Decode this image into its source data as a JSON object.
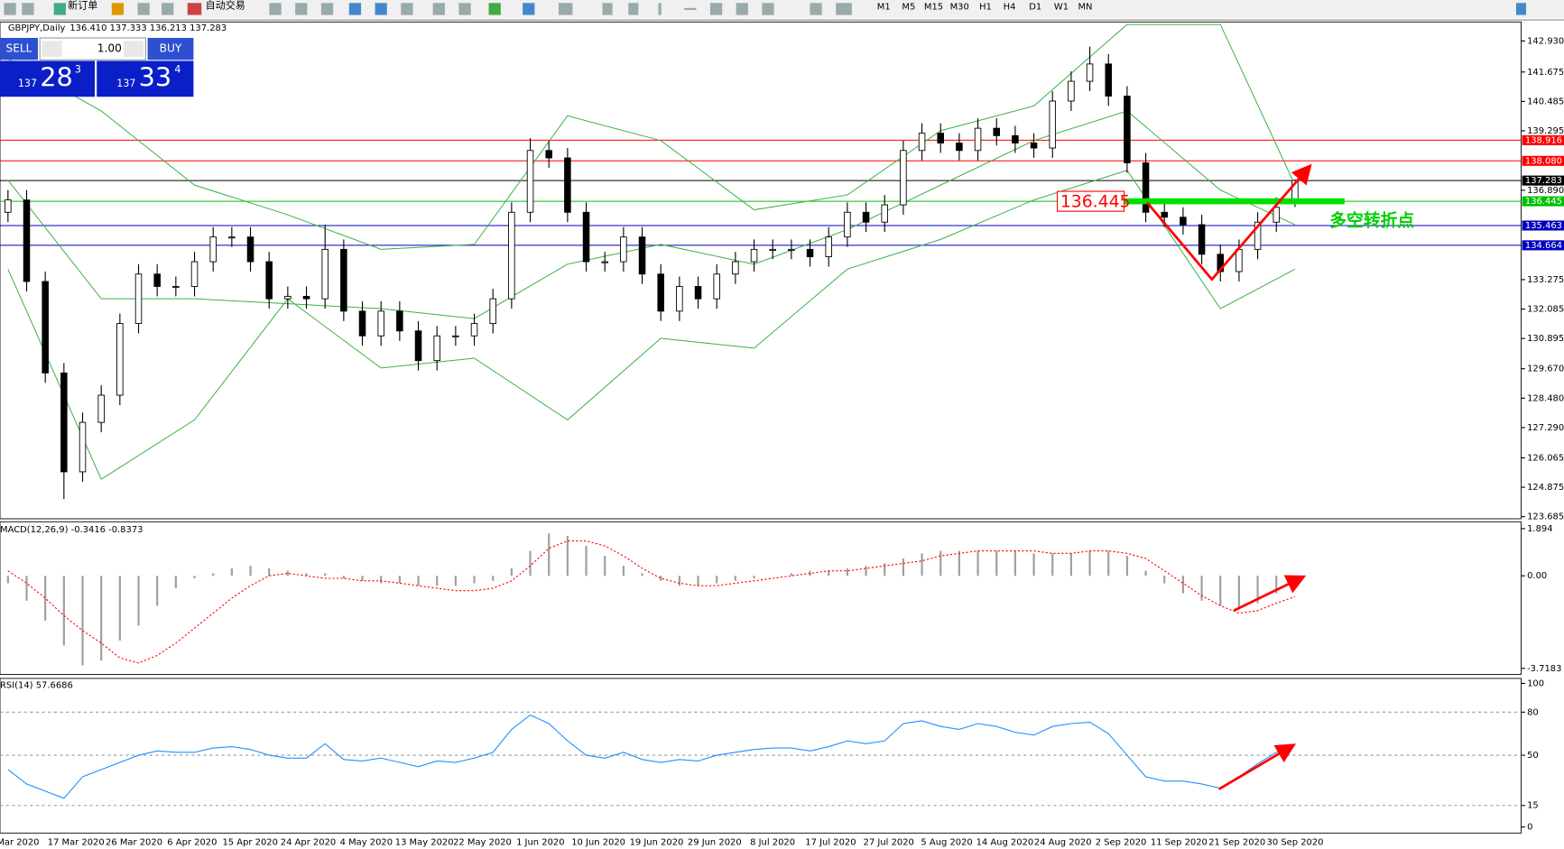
{
  "toolbar": {
    "new_order": "新订单",
    "auto_trading": "自动交易",
    "timeframes": [
      "M1",
      "M5",
      "M15",
      "M30",
      "H1",
      "H4",
      "D1",
      "W1",
      "MN"
    ]
  },
  "trade_panel": {
    "sell": "SELL",
    "buy": "BUY",
    "volume": "1.00",
    "sell_price": {
      "big": "137",
      "main": "28",
      "small": "3"
    },
    "buy_price": {
      "big": "137",
      "main": "33",
      "small": "4"
    }
  },
  "chart_data": [
    {
      "type": "candlestick",
      "symbol": "GBPJPY,Daily",
      "ohlc_text": "136.410 137.333 136.213 137.283",
      "ylim": [
        123.6,
        143.7
      ],
      "yticks": [
        {
          "value": 142.93,
          "label": "142.930"
        },
        141.675,
        140.485,
        139.295,
        {
          "value": 136.89,
          "label": "136.890"
        },
        133.275,
        132.085,
        130.895,
        {
          "value": 129.67,
          "label": "129.670"
        },
        {
          "value": 128.48,
          "label": "128.480"
        },
        {
          "value": 127.29,
          "label": "127.290"
        },
        126.065,
        124.875,
        123.685
      ],
      "candles": [
        [
          136,
          136.9,
          135.6,
          136.5
        ],
        [
          136.5,
          136.9,
          132.8,
          133.2
        ],
        [
          133.2,
          133.6,
          129.1,
          129.5
        ],
        [
          129.5,
          129.9,
          124.4,
          125.5
        ],
        [
          125.5,
          127.9,
          125.1,
          127.5
        ],
        [
          127.5,
          129,
          127.1,
          128.6
        ],
        [
          128.6,
          131.9,
          128.2,
          131.5
        ],
        [
          131.5,
          133.9,
          131.1,
          133.5
        ],
        [
          133.5,
          133.9,
          132.6,
          133
        ],
        [
          133,
          133.4,
          132.6,
          133
        ],
        [
          133,
          134.4,
          132.6,
          134
        ],
        [
          134,
          135.4,
          133.6,
          135
        ],
        [
          135,
          135.4,
          134.6,
          135
        ],
        [
          135,
          135.4,
          133.6,
          134
        ],
        [
          134,
          134.4,
          132.1,
          132.5
        ],
        [
          132.5,
          133,
          132.1,
          132.6
        ],
        [
          132.6,
          133,
          132.1,
          132.5
        ],
        [
          132.5,
          135.5,
          132.1,
          134.5
        ],
        [
          134.5,
          134.9,
          131.6,
          132
        ],
        [
          132,
          132.4,
          130.6,
          131
        ],
        [
          131,
          132.4,
          130.6,
          132
        ],
        [
          132,
          132.4,
          130.8,
          131.2
        ],
        [
          131.2,
          131.6,
          129.6,
          130
        ],
        [
          130,
          131.4,
          129.6,
          131
        ],
        [
          131,
          131.4,
          130.6,
          131
        ],
        [
          131,
          131.9,
          130.6,
          131.5
        ],
        [
          131.5,
          132.9,
          131.1,
          132.5
        ],
        [
          132.5,
          136.4,
          132.1,
          136
        ],
        [
          136,
          139,
          135.6,
          138.5
        ],
        [
          138.5,
          138.9,
          137.8,
          138.2
        ],
        [
          138.2,
          138.6,
          135.6,
          136
        ],
        [
          136,
          136.4,
          133.6,
          134
        ],
        [
          134,
          134.4,
          133.6,
          134
        ],
        [
          134,
          135.4,
          133.6,
          135
        ],
        [
          135,
          135.4,
          133.1,
          133.5
        ],
        [
          133.5,
          133.9,
          131.6,
          132
        ],
        [
          132,
          133.4,
          131.6,
          133
        ],
        [
          133,
          133.4,
          132.1,
          132.5
        ],
        [
          132.5,
          133.9,
          132.1,
          133.5
        ],
        [
          133.5,
          134.4,
          133.1,
          134
        ],
        [
          134,
          134.9,
          133.6,
          134.5
        ],
        [
          134.5,
          134.9,
          134.1,
          134.5
        ],
        [
          134.5,
          134.9,
          134.1,
          134.5
        ],
        [
          134.5,
          134.9,
          133.8,
          134.2
        ],
        [
          134.2,
          135.4,
          133.8,
          135
        ],
        [
          135,
          136.4,
          134.6,
          136
        ],
        [
          136,
          136.4,
          135.2,
          135.6
        ],
        [
          135.6,
          136.7,
          135.2,
          136.3
        ],
        [
          136.3,
          138.9,
          135.9,
          138.5
        ],
        [
          138.5,
          139.6,
          138.1,
          139.2
        ],
        [
          139.2,
          139.6,
          138.4,
          138.8
        ],
        [
          138.8,
          139.2,
          138.1,
          138.5
        ],
        [
          138.5,
          139.8,
          138.1,
          139.4
        ],
        [
          139.4,
          139.8,
          138.7,
          139.1
        ],
        [
          139.1,
          139.5,
          138.4,
          138.8
        ],
        [
          138.8,
          139.2,
          138.2,
          138.6
        ],
        [
          138.6,
          140.9,
          138.2,
          140.5
        ],
        [
          140.5,
          141.7,
          140.1,
          141.3
        ],
        [
          141.3,
          142.7,
          140.9,
          142
        ],
        [
          142,
          142.4,
          140.3,
          140.7
        ],
        [
          140.7,
          141.1,
          137.6,
          138
        ],
        [
          138,
          138.4,
          135.6,
          136
        ],
        [
          136,
          136.4,
          135.4,
          135.8
        ],
        [
          135.8,
          136.2,
          135.1,
          135.5
        ],
        [
          135.5,
          135.9,
          133.9,
          134.3
        ],
        [
          134.3,
          134.7,
          133.2,
          133.6
        ],
        [
          133.6,
          134.9,
          133.2,
          134.5
        ],
        [
          134.5,
          136,
          134.1,
          135.6
        ],
        [
          135.6,
          136.6,
          135.2,
          136.2
        ],
        [
          136.41,
          137.333,
          136.213,
          137.283
        ]
      ],
      "bands": {
        "x": [
          0,
          5,
          10,
          15,
          20,
          25,
          30,
          35,
          40,
          45,
          50,
          55,
          60,
          65,
          69
        ],
        "upper": [
          142.2,
          140.1,
          137.1,
          135.9,
          134.5,
          134.7,
          139.9,
          138.9,
          136.1,
          136.7,
          139.3,
          140.3,
          143.6,
          143.6,
          137.1
        ],
        "middle": [
          137.3,
          132.5,
          132.5,
          132.3,
          132.1,
          131.7,
          133.9,
          134.7,
          133.9,
          135.3,
          137.1,
          138.9,
          140.1,
          136.9,
          135.5
        ],
        "lower": [
          133.7,
          125.2,
          127.6,
          132.5,
          129.7,
          130.1,
          127.6,
          130.9,
          130.5,
          133.7,
          134.9,
          136.5,
          137.7,
          132.1,
          133.7
        ],
        "color": "#3cb043"
      },
      "levels": [
        {
          "value": 138.916,
          "label": "138.916",
          "color": "#ff0000"
        },
        {
          "value": 138.08,
          "label": "138.080",
          "color": "#ff0000"
        },
        {
          "value": 137.283,
          "label": "137.283",
          "color": "#000000"
        },
        {
          "value": 136.445,
          "label": "136.445",
          "color": "#00c000"
        },
        {
          "value": 135.463,
          "label": "135.463",
          "color": "#0000c0"
        },
        {
          "value": 134.664,
          "label": "134.664",
          "color": "#0000c0"
        }
      ],
      "annotations": [
        "136.445",
        "多空转折点"
      ]
    },
    {
      "type": "macd",
      "title": "MACD(12,26,9) -0.3416 -0.8373",
      "ylim": [
        -3.96,
        2.17
      ],
      "yticks": [
        1.894,
        {
          "value": 0,
          "label": "0.00"
        },
        -3.7183
      ],
      "series": [
        {
          "name": "MACD",
          "color": "#a0a0a0",
          "values": [
            -0.3,
            -1.0,
            -1.8,
            -2.8,
            -3.6,
            -3.4,
            -2.6,
            -2.0,
            -1.2,
            -0.5,
            -0.1,
            0.1,
            0.3,
            0.4,
            0.3,
            0.2,
            0.1,
            0.1,
            -0.1,
            -0.2,
            -0.3,
            -0.3,
            -0.4,
            -0.4,
            -0.4,
            -0.3,
            -0.2,
            0.3,
            1.0,
            1.7,
            1.6,
            1.2,
            0.8,
            0.4,
            0.1,
            -0.2,
            -0.4,
            -0.4,
            -0.3,
            -0.2,
            -0.1,
            0.0,
            0.1,
            0.2,
            0.2,
            0.3,
            0.4,
            0.5,
            0.7,
            0.9,
            1.0,
            1.0,
            1.0,
            1.0,
            1.0,
            0.9,
            0.9,
            0.9,
            1.0,
            1.0,
            0.8,
            0.2,
            -0.3,
            -0.7,
            -1.0,
            -1.2,
            -1.3,
            -1.1,
            -0.7,
            -0.3416
          ]
        },
        {
          "name": "Signal",
          "color": "#ff0000",
          "values": [
            0.2,
            -0.3,
            -0.9,
            -1.6,
            -2.2,
            -2.7,
            -3.3,
            -3.5,
            -3.2,
            -2.7,
            -2.1,
            -1.5,
            -0.9,
            -0.4,
            0.0,
            0.1,
            0.0,
            -0.1,
            -0.1,
            -0.2,
            -0.2,
            -0.3,
            -0.4,
            -0.5,
            -0.6,
            -0.6,
            -0.5,
            -0.2,
            0.4,
            1.1,
            1.4,
            1.4,
            1.2,
            0.8,
            0.3,
            -0.1,
            -0.3,
            -0.4,
            -0.4,
            -0.3,
            -0.2,
            -0.1,
            0.0,
            0.1,
            0.2,
            0.2,
            0.3,
            0.4,
            0.5,
            0.6,
            0.8,
            0.9,
            1.0,
            1.0,
            1.0,
            1.0,
            0.9,
            0.9,
            1.0,
            1.0,
            0.9,
            0.7,
            0.2,
            -0.3,
            -0.8,
            -1.2,
            -1.5,
            -1.4,
            -1.1,
            -0.8373
          ]
        }
      ]
    },
    {
      "type": "line",
      "title": "RSI(14) 57.6686",
      "ylim": [
        -4.2,
        103.5
      ],
      "yticks": [
        100,
        80,
        50,
        15,
        0
      ],
      "dashed_levels": [
        80,
        50,
        15
      ],
      "color": "#1e90ff",
      "values": [
        40,
        30,
        25,
        20,
        35,
        40,
        45,
        50,
        53,
        52,
        52,
        55,
        56,
        54,
        50,
        48,
        48,
        58,
        47,
        46,
        48,
        45,
        42,
        46,
        45,
        48,
        52,
        68,
        78,
        72,
        60,
        50,
        48,
        52,
        47,
        45,
        47,
        46,
        50,
        52,
        54,
        55,
        55,
        53,
        56,
        60,
        58,
        60,
        72,
        74,
        70,
        68,
        72,
        70,
        66,
        64,
        70,
        72,
        73,
        65,
        50,
        35,
        32,
        32,
        30,
        27,
        35,
        44,
        52,
        57.6686
      ]
    }
  ],
  "dates": [
    "Mar 2020",
    "17 Mar 2020",
    "26 Mar 2020",
    "6 Apr 2020",
    "15 Apr 2020",
    "24 Apr 2020",
    "4 May 2020",
    "13 May 2020",
    "22 May 2020",
    "1 Jun 2020",
    "10 Jun 2020",
    "19 Jun 2020",
    "29 Jun 2020",
    "8 Jul 2020",
    "17 Jul 2020",
    "27 Jul 2020",
    "5 Aug 2020",
    "14 Aug 2020",
    "24 Aug 2020",
    "2 Sep 2020",
    "11 Sep 2020",
    "21 Sep 2020",
    "30 Sep 2020"
  ]
}
